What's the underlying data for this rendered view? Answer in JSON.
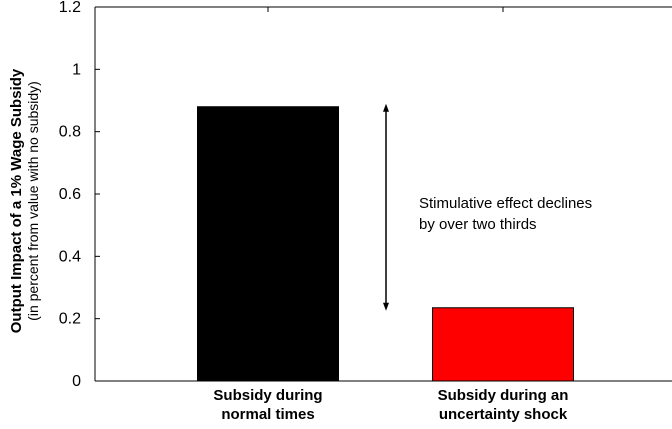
{
  "chart_data": {
    "type": "bar",
    "categories": [
      [
        "Subsidy during",
        "normal times"
      ],
      [
        "Subsidy during an",
        "uncertainty shock"
      ]
    ],
    "values": [
      0.88,
      0.235
    ],
    "colors": [
      "#000000",
      "#ff0000"
    ],
    "ylabel": "Output Impact of a 1% Wage Subsidy",
    "ylabel_sub": "(in percent from value with no subsidy)",
    "ylim": [
      0,
      1.2
    ],
    "yticks": [
      "0",
      "0.2",
      "0.4",
      "0.6",
      "0.8",
      "1",
      "1.2"
    ],
    "annotation": [
      "Stimulative effect declines",
      "by over two thirds"
    ],
    "arrow_range": [
      0.235,
      0.88
    ]
  }
}
